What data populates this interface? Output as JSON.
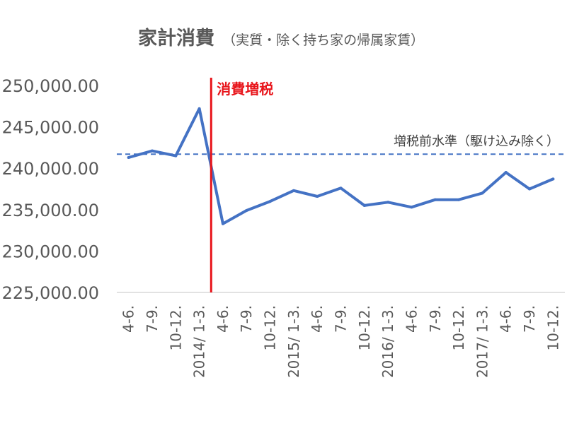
{
  "chart_data": {
    "type": "line",
    "title": "家計消費",
    "subtitle": "（実質・除く持ち家の帰属家賃）",
    "xlabel": "",
    "ylabel": "",
    "ylim": [
      225000,
      250000
    ],
    "yticks": [
      "225,000.00",
      "230,000.00",
      "235,000.00",
      "240,000.00",
      "245,000.00",
      "250,000.00"
    ],
    "categories": [
      "4-6.",
      "7-9.",
      "10-12.",
      "2014/ 1-3.",
      "4-6.",
      "7-9.",
      "10-12.",
      "2015/ 1-3.",
      "4-6.",
      "7-9.",
      "10-12.",
      "2016/ 1-3.",
      "4-6.",
      "7-9.",
      "10-12.",
      "2017/ 1-3.",
      "4-6.",
      "7-9.",
      "10-12."
    ],
    "series": [
      {
        "color": "#4472c4",
        "values": [
          241300,
          242100,
          241500,
          247200,
          233300,
          234900,
          236000,
          237300,
          236600,
          237600,
          235500,
          235900,
          235300,
          236200,
          236200,
          237000,
          239500,
          237500,
          238700
        ]
      }
    ],
    "baseline": {
      "label": "増税前水準（駆け込み除く）",
      "value": 241700,
      "color": "#4472c4",
      "style": "dashed"
    },
    "event_marker": {
      "label": "消費増税",
      "category_index": 3.5,
      "color": "#e8151b"
    },
    "grid": false,
    "legend": "none"
  }
}
